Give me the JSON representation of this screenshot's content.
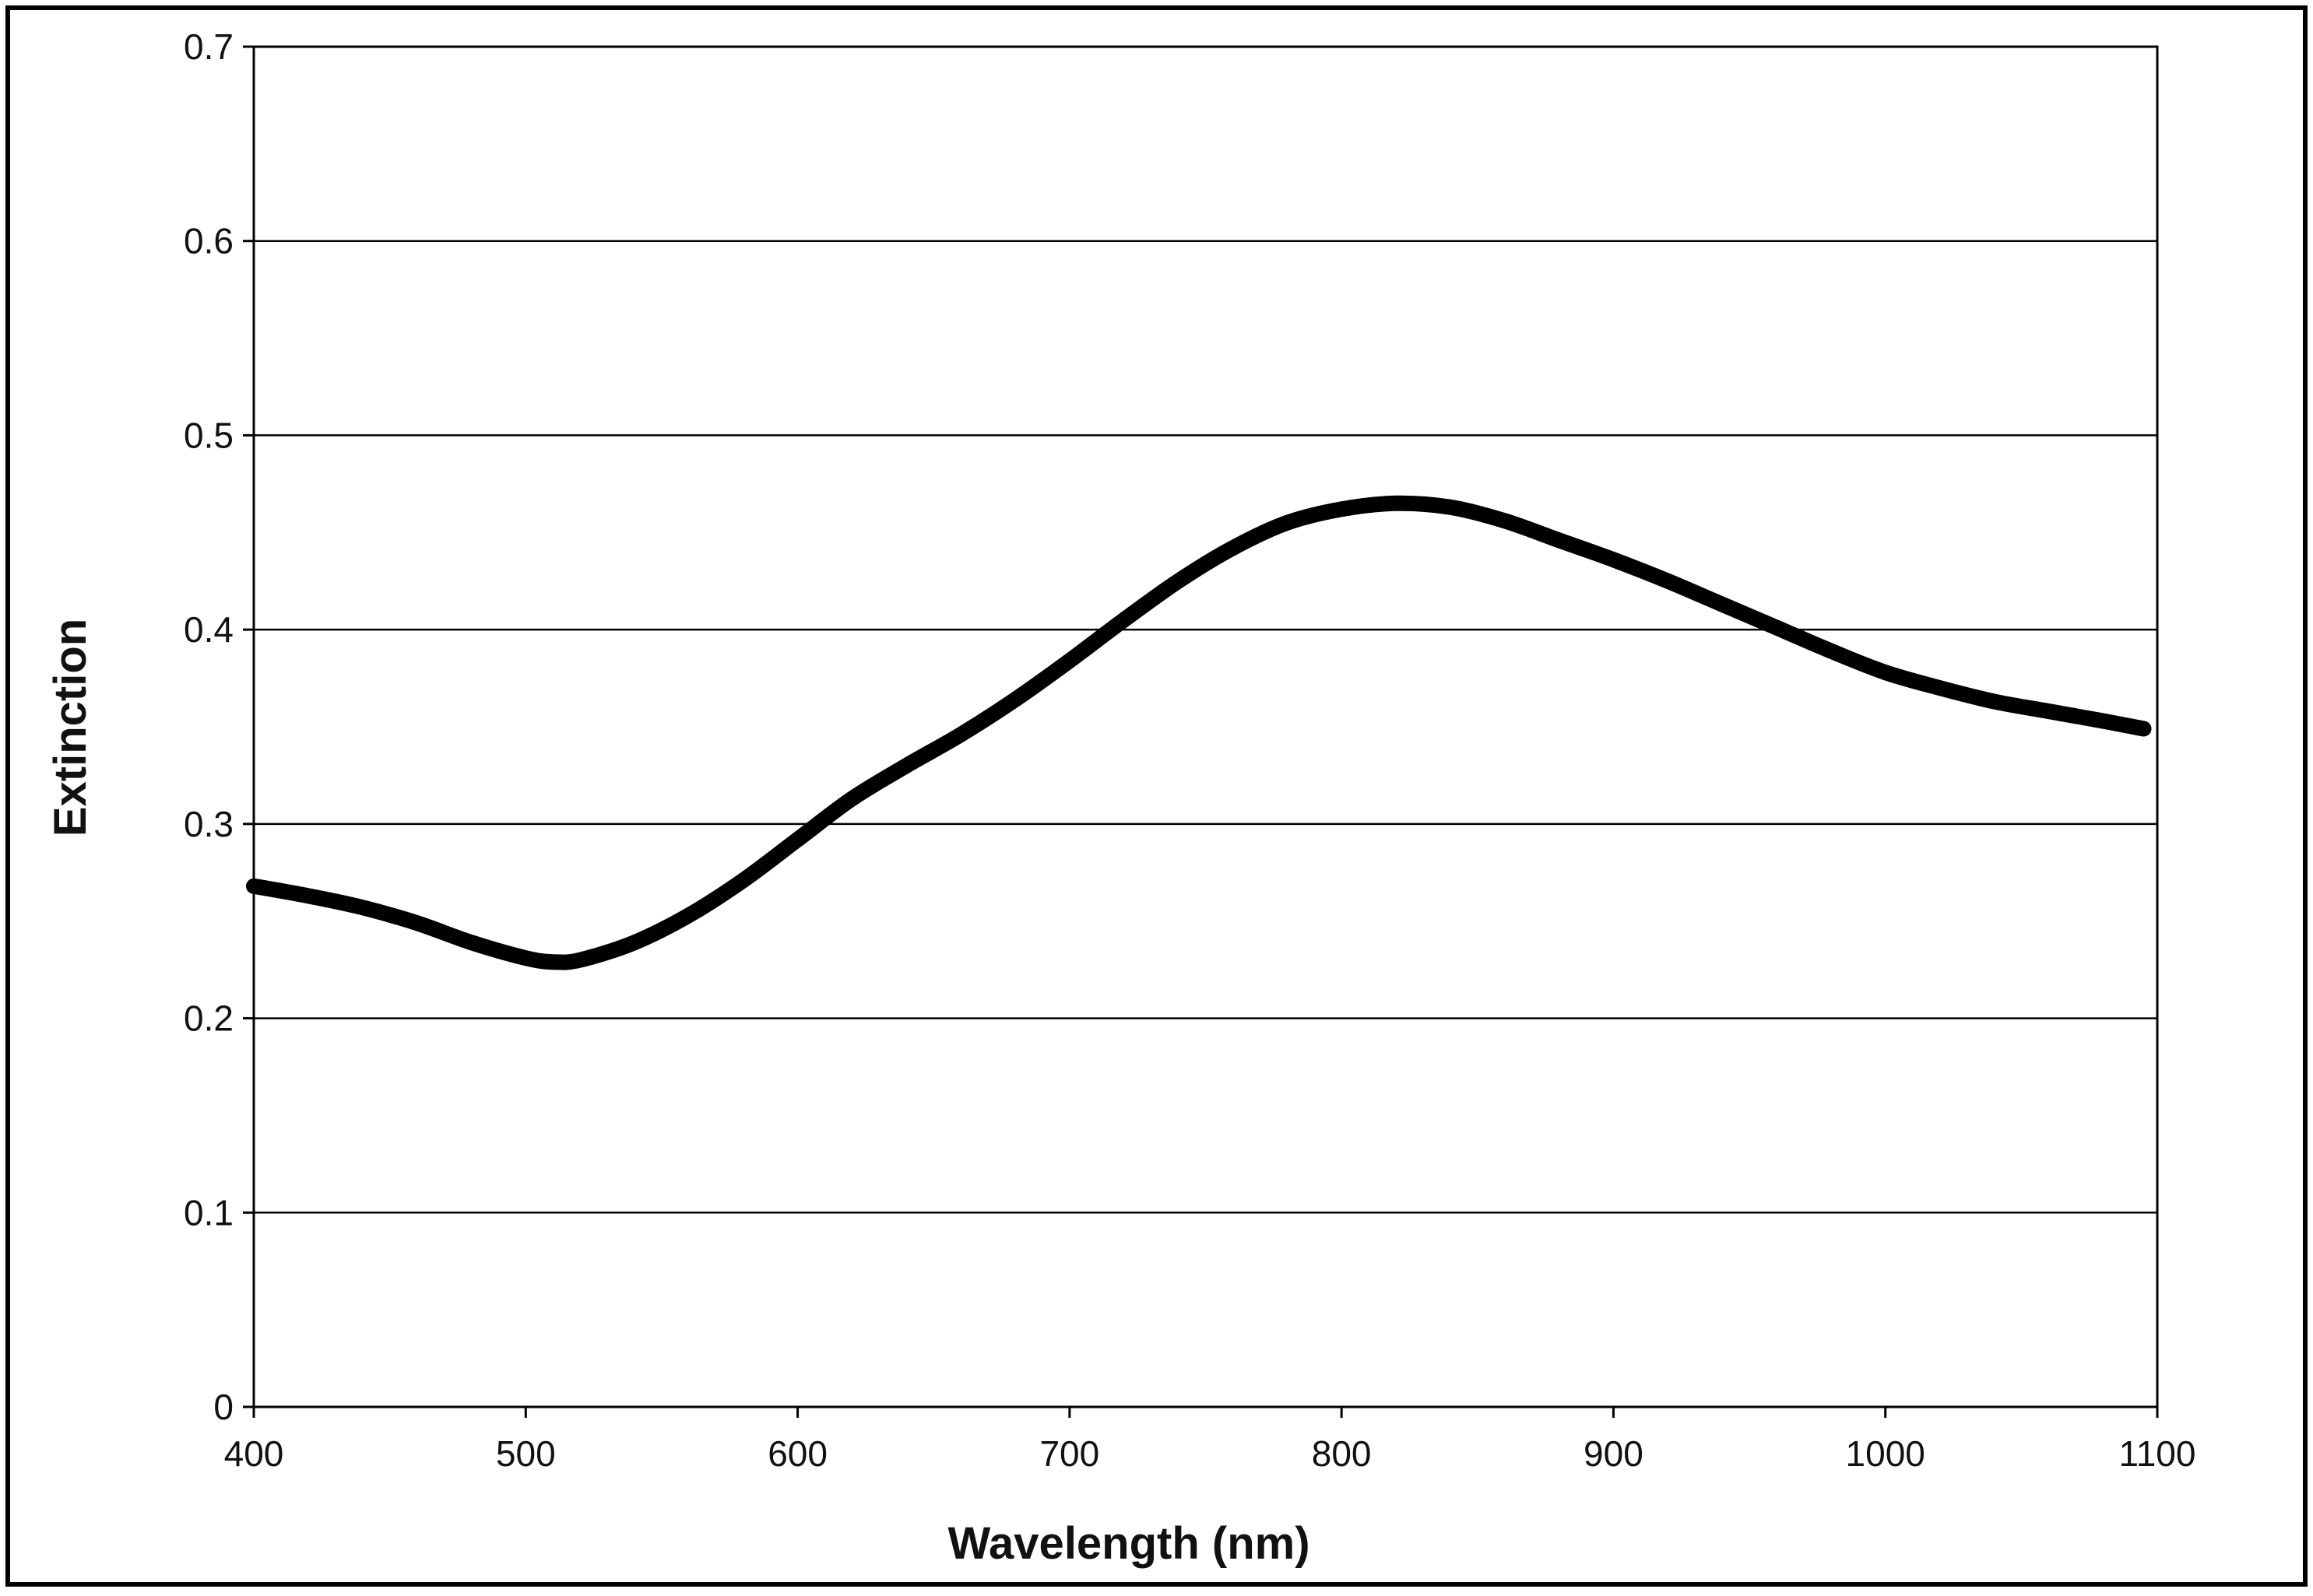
{
  "chart_data": {
    "type": "line",
    "title": "",
    "xlabel": "Wavelength (nm)",
    "ylabel": "Extinction",
    "xlim": [
      400,
      1100
    ],
    "ylim": [
      0,
      0.7
    ],
    "x_ticks": [
      "400",
      "500",
      "600",
      "700",
      "800",
      "900",
      "1000",
      "1100"
    ],
    "y_ticks": [
      "0",
      "0.1",
      "0.2",
      "0.3",
      "0.4",
      "0.5",
      "0.6",
      "0.7"
    ],
    "grid": "horizontal",
    "legend": "none",
    "series": [
      {
        "color": "#000000",
        "x": [
          400,
          420,
          440,
          460,
          480,
          500,
          510,
          520,
          540,
          560,
          580,
          600,
          620,
          640,
          660,
          680,
          700,
          720,
          740,
          760,
          780,
          800,
          820,
          840,
          860,
          880,
          900,
          920,
          940,
          960,
          980,
          1000,
          1020,
          1040,
          1060,
          1080,
          1095
        ],
        "y": [
          0.268,
          0.263,
          0.257,
          0.249,
          0.239,
          0.231,
          0.229,
          0.23,
          0.239,
          0.253,
          0.271,
          0.292,
          0.313,
          0.33,
          0.346,
          0.364,
          0.384,
          0.405,
          0.425,
          0.442,
          0.455,
          0.462,
          0.465,
          0.463,
          0.456,
          0.446,
          0.436,
          0.425,
          0.413,
          0.401,
          0.389,
          0.378,
          0.37,
          0.363,
          0.358,
          0.353,
          0.349
        ]
      }
    ]
  }
}
